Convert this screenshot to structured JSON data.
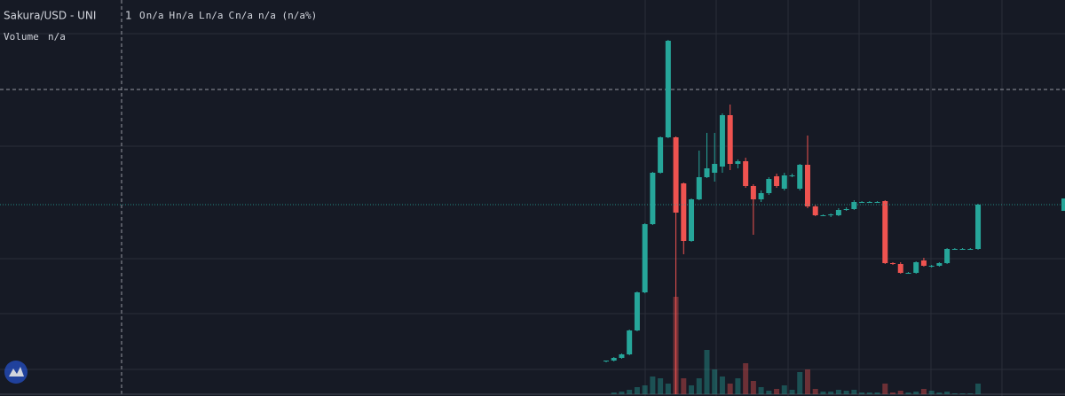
{
  "chart_data": {
    "type": "candlestick",
    "title": "Sakura/USD - UNI",
    "interval": "1",
    "legend": [
      {
        "label": "O",
        "value": "n/a"
      },
      {
        "label": "H",
        "value": "n/a"
      },
      {
        "label": "L",
        "value": "n/a"
      },
      {
        "label": "C",
        "value": "n/a"
      }
    ],
    "change": "n/a (n/a%)",
    "volume_legend": {
      "label": "Volume",
      "value": "n/a"
    },
    "up_color": "#26a69a",
    "down_color": "#ef5350",
    "ylim": [
      0,
      447
    ],
    "volume_lim": [
      0,
      447
    ],
    "open": [
      39,
      40,
      43,
      47,
      74,
      117,
      194,
      252,
      292,
      292,
      240,
      175,
      222,
      247,
      252,
      259,
      317,
      262,
      265,
      237,
      222,
      229,
      248,
      234,
      249,
      234,
      261,
      214,
      204,
      204,
      204,
      210,
      211,
      219,
      219,
      219,
      220,
      150,
      149,
      139,
      139,
      153,
      147,
      147,
      150,
      166,
      166,
      166,
      166
    ],
    "high": [
      40,
      44,
      48,
      75,
      118,
      195,
      253,
      293,
      402,
      293,
      241,
      223,
      277,
      297,
      297,
      319,
      329,
      267,
      269,
      239,
      232,
      247,
      251,
      252,
      251,
      262,
      294,
      216,
      205,
      206,
      212,
      213,
      221,
      220,
      220,
      220,
      221,
      151,
      151,
      140,
      152,
      156,
      148,
      151,
      167,
      167,
      167,
      167,
      217
    ],
    "low": [
      38,
      39,
      42,
      46,
      73,
      116,
      193,
      251,
      291,
      2,
      160,
      174,
      221,
      246,
      242,
      252,
      255,
      257,
      235,
      182,
      219,
      227,
      235,
      232,
      247,
      232,
      212,
      203,
      203,
      202,
      203,
      209,
      210,
      218,
      218,
      218,
      149,
      148,
      138,
      138,
      138,
      146,
      145,
      146,
      149,
      165,
      165,
      165,
      165
    ],
    "close": [
      40,
      43,
      47,
      74,
      117,
      194,
      252,
      292,
      401,
      207,
      175,
      222,
      247,
      257,
      262,
      317,
      262,
      265,
      237,
      222,
      229,
      245,
      237,
      249,
      249,
      261,
      214,
      204,
      204,
      205,
      210,
      211,
      219,
      219,
      219,
      219,
      150,
      149,
      139,
      139,
      151,
      147,
      147,
      150,
      166,
      166,
      166,
      166,
      216
    ],
    "volume": [
      0,
      2,
      3,
      5,
      8,
      10,
      20,
      18,
      12,
      110,
      18,
      10,
      18,
      50,
      28,
      20,
      12,
      18,
      35,
      15,
      8,
      4,
      6,
      10,
      5,
      25,
      28,
      6,
      3,
      3,
      5,
      4,
      5,
      2,
      2,
      2,
      12,
      2,
      4,
      2,
      3,
      6,
      4,
      2,
      3,
      1,
      1,
      1,
      12
    ]
  }
}
